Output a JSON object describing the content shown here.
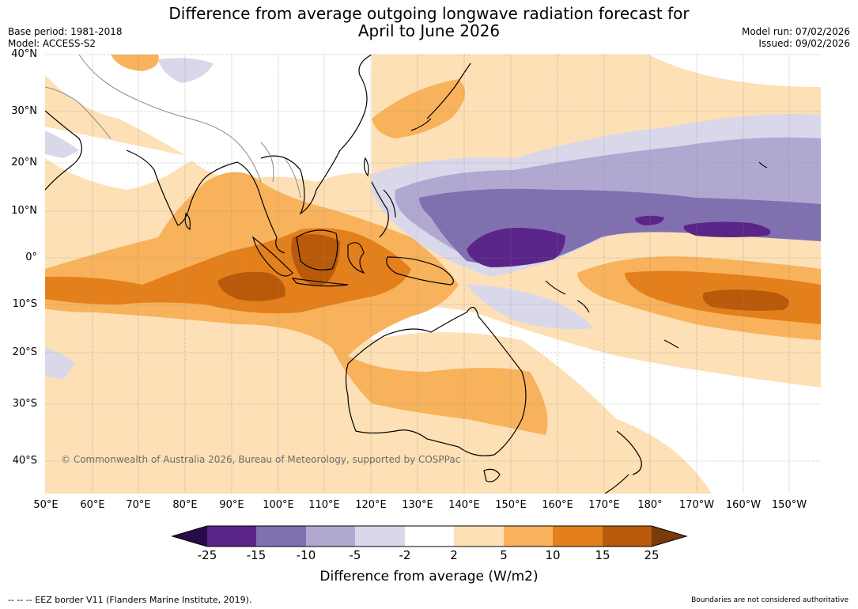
{
  "title_line1": "Difference from average outgoing longwave radiation forecast for",
  "title_line2": "April to June 2026",
  "meta_left": [
    "Base period: 1981-2018",
    "Model: ACCESS-S2"
  ],
  "meta_right": [
    "Model run: 07/02/2026",
    "Issued: 09/02/2026"
  ],
  "copyright": "© Commonwealth of Australia 2026, Bureau of Meteorology, supported by COSPPac",
  "lat_labels": [
    "40°N",
    "30°N",
    "20°N",
    "10°N",
    "0°",
    "10°S",
    "20°S",
    "30°S",
    "40°S"
  ],
  "lon_labels": [
    "50°E",
    "60°E",
    "70°E",
    "80°E",
    "90°E",
    "100°E",
    "110°E",
    "120°E",
    "130°E",
    "140°E",
    "150°E",
    "160°E",
    "170°E",
    "180°",
    "170°W",
    "160°W",
    "150°W"
  ],
  "colorbar": {
    "ticks": [
      "-25",
      "-15",
      "-10",
      "-5",
      "-2",
      "2",
      "5",
      "10",
      "15",
      "25"
    ],
    "colors": [
      "#2a0b4a",
      "#5b2488",
      "#8070b0",
      "#b1a8d2",
      "#d9d8ea",
      "#ffffff",
      "#fde0b5",
      "#f8b25c",
      "#e4801c",
      "#b95a0b",
      "#7a3a0a"
    ],
    "label": "Difference from average (W/m2)"
  },
  "footer_left": "--  --  -- EEZ border V11 (Flanders Marine Institute, 2019).",
  "footer_right": "Boundaries are not considered authoritative"
}
